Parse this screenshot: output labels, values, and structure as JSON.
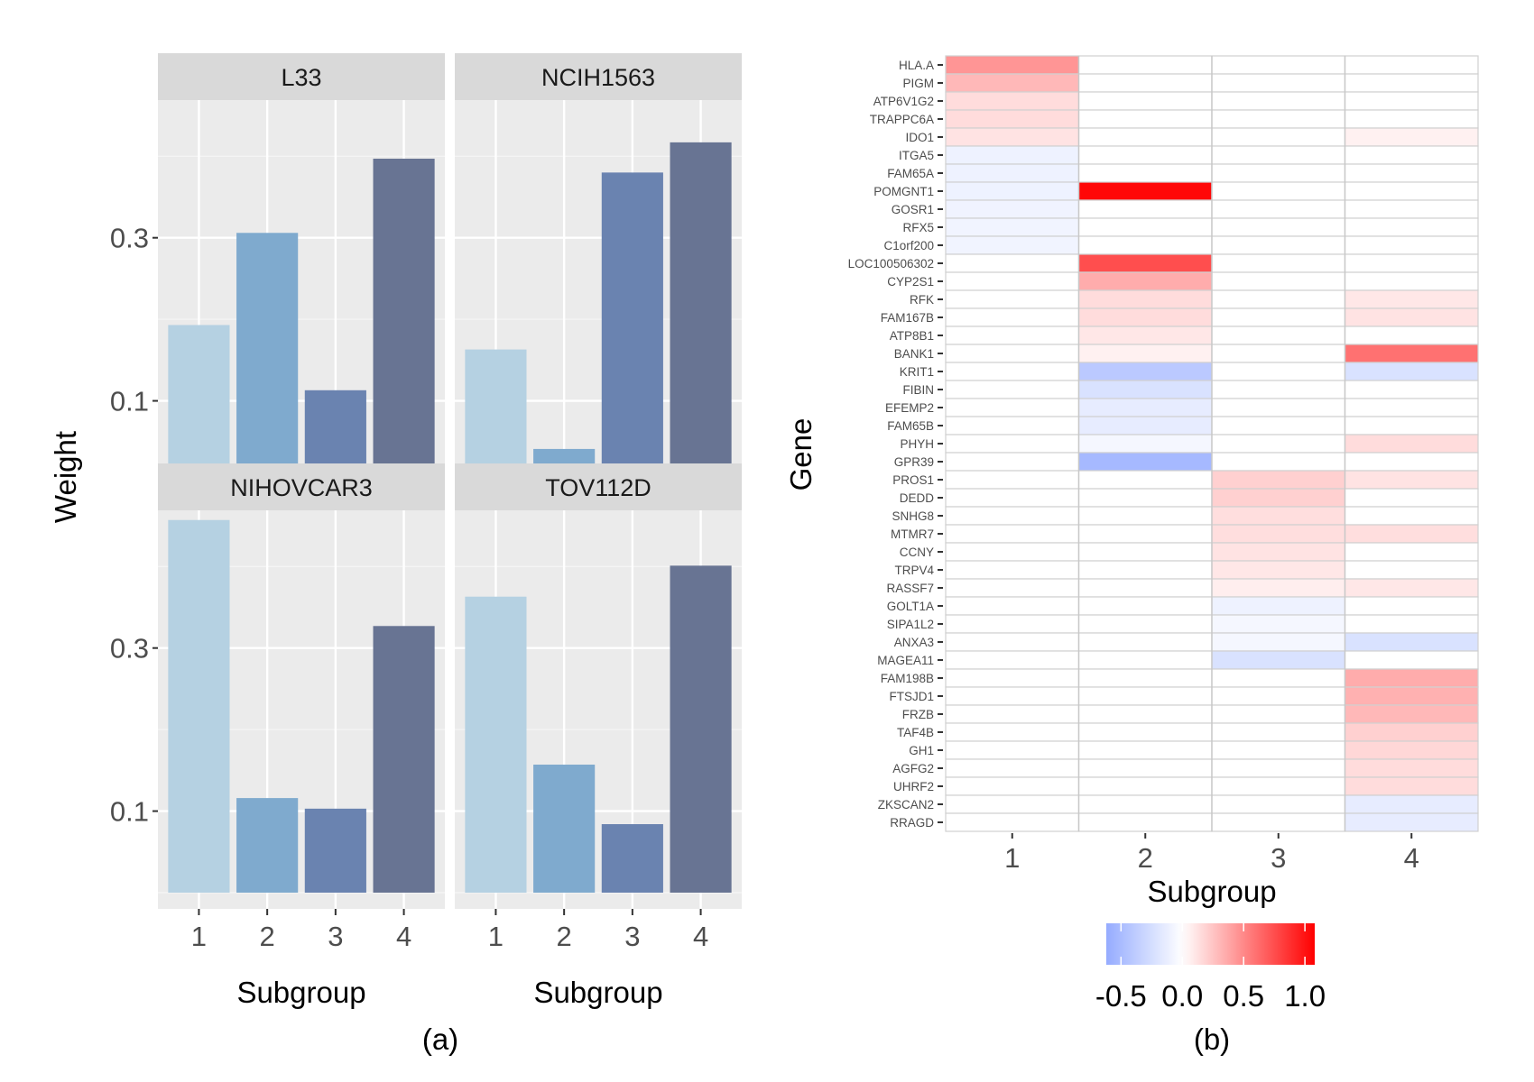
{
  "chart_data": [
    {
      "type": "bar",
      "panel_label": "(a)",
      "title": "",
      "xlabel": "Subgroup",
      "ylabel": "Weight",
      "ylim": [
        0,
        0.46
      ],
      "yticks": [
        0.1,
        0.3
      ],
      "ytick_labels": [
        "0.1",
        "0.3"
      ],
      "categories": [
        "1",
        "2",
        "3",
        "4"
      ],
      "bar_colors": [
        "#b3cfe1",
        "#7ba7cc",
        "#657fad",
        "#63708f"
      ],
      "facets": [
        {
          "name": "L33",
          "values": [
            0.193,
            0.306,
            0.113,
            0.397
          ]
        },
        {
          "name": "NCIH1563",
          "values": [
            0.163,
            0.041,
            0.38,
            0.417
          ]
        },
        {
          "name": "NIHOVCAR3",
          "values": [
            0.457,
            0.116,
            0.103,
            0.327
          ]
        },
        {
          "name": "TOV112D",
          "values": [
            0.363,
            0.157,
            0.084,
            0.401
          ]
        }
      ],
      "grid": true
    },
    {
      "type": "heatmap",
      "panel_label": "(b)",
      "xlabel": "Subgroup",
      "ylabel": "Gene",
      "x": [
        "1",
        "2",
        "3",
        "4"
      ],
      "genes": [
        "HLA.A",
        "PIGM",
        "ATP6V1G2",
        "TRAPPC6A",
        "IDO1",
        "ITGA5",
        "FAM65A",
        "POMGNT1",
        "GOSR1",
        "RFX5",
        "C1orf200",
        "LOC100506302",
        "CYP2S1",
        "RFK",
        "FAM167B",
        "ATP8B1",
        "BANK1",
        "KRIT1",
        "FIBIN",
        "EFEMP2",
        "FAM65B",
        "PHYH",
        "GPR39",
        "PROS1",
        "DEDD",
        "SNHG8",
        "MTMR7",
        "CCNY",
        "TRPV4",
        "RASSF7",
        "GOLT1A",
        "SIPA1L2",
        "ANXA3",
        "MAGEA11",
        "FAM198B",
        "FTSJD1",
        "FRZB",
        "TAF4B",
        "GH1",
        "AGFG2",
        "UHRF2",
        "ZKSCAN2",
        "RRAGD"
      ],
      "values": [
        [
          0.45,
          0,
          0,
          0
        ],
        [
          0.3,
          0,
          0,
          0
        ],
        [
          0.15,
          0,
          0,
          0
        ],
        [
          0.15,
          0,
          0,
          0
        ],
        [
          0.12,
          0,
          0,
          0.06
        ],
        [
          -0.1,
          0,
          0,
          0
        ],
        [
          -0.1,
          0,
          0,
          0
        ],
        [
          -0.1,
          1.05,
          0,
          0
        ],
        [
          -0.09,
          0,
          0,
          0
        ],
        [
          -0.08,
          0,
          0,
          0
        ],
        [
          -0.08,
          0,
          0,
          0
        ],
        [
          0,
          0.75,
          0,
          0
        ],
        [
          0,
          0.35,
          0,
          0
        ],
        [
          0,
          0.15,
          0,
          0.1
        ],
        [
          0,
          0.15,
          0,
          0.12
        ],
        [
          0,
          0.1,
          0,
          0
        ],
        [
          0,
          0.06,
          0,
          0.6
        ],
        [
          0,
          -0.4,
          0,
          -0.22
        ],
        [
          0,
          -0.22,
          0,
          0
        ],
        [
          0,
          -0.14,
          0,
          0
        ],
        [
          0,
          -0.14,
          0,
          0
        ],
        [
          0,
          -0.06,
          0,
          0.15
        ],
        [
          0,
          -0.52,
          0,
          0
        ],
        [
          0,
          0,
          0.2,
          0.12
        ],
        [
          0,
          0,
          0.2,
          0
        ],
        [
          0,
          0,
          0.14,
          0
        ],
        [
          0,
          0,
          0.14,
          0.14
        ],
        [
          0,
          0,
          0.12,
          0
        ],
        [
          0,
          0,
          0.1,
          0
        ],
        [
          0,
          0,
          0.07,
          0.1
        ],
        [
          0,
          0,
          -0.1,
          0
        ],
        [
          0,
          0,
          -0.06,
          0
        ],
        [
          0,
          0,
          -0.06,
          -0.22
        ],
        [
          0,
          0,
          -0.22,
          0
        ],
        [
          0,
          0,
          0,
          0.35
        ],
        [
          0,
          0,
          0,
          0.33
        ],
        [
          0,
          0,
          0,
          0.3
        ],
        [
          0,
          0,
          0,
          0.2
        ],
        [
          0,
          0,
          0,
          0.17
        ],
        [
          0,
          0,
          0,
          0.15
        ],
        [
          0,
          0,
          0,
          0.15
        ],
        [
          0,
          0,
          0,
          -0.14
        ],
        [
          0,
          0,
          0,
          -0.14
        ]
      ],
      "colorbar": {
        "range": [
          -0.62,
          1.08
        ],
        "ticks": [
          -0.5,
          0.0,
          0.5,
          1.0
        ],
        "tick_labels": [
          "-0.5",
          "0.0",
          "0.5",
          "1.0"
        ],
        "low_color": "#95acff",
        "mid_color": "#ffffff",
        "high_color": "#ff0000"
      }
    }
  ]
}
